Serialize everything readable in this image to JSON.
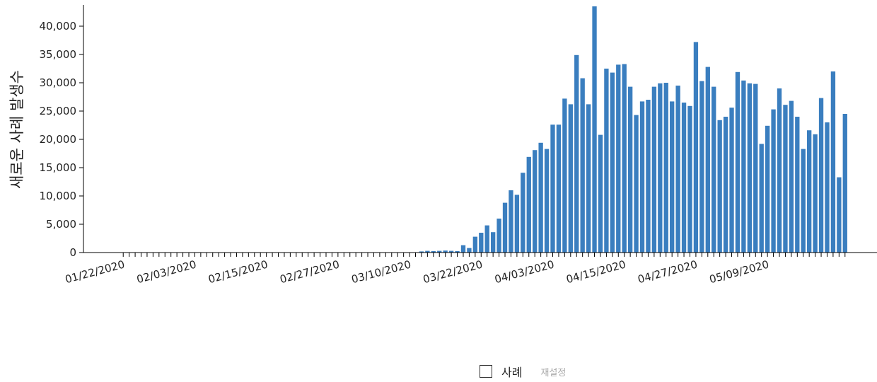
{
  "chart_data": {
    "type": "bar",
    "title": "",
    "xlabel": "",
    "ylabel": "새로운 사례 발생수",
    "ylim": [
      0,
      43500
    ],
    "yticks": [
      0,
      5000,
      10000,
      15000,
      20000,
      25000,
      30000,
      35000,
      40000
    ],
    "ytick_labels": [
      "0",
      "5,000",
      "10,000",
      "15,000",
      "20,000",
      "25,000",
      "30,000",
      "35,000",
      "40,000"
    ],
    "xtick_labels": [
      "01/22/2020",
      "02/03/2020",
      "02/15/2020",
      "02/27/2020",
      "03/10/2020",
      "03/22/2020",
      "04/03/2020",
      "04/15/2020",
      "04/27/2020",
      "05/09/2020"
    ],
    "xtick_every": 12,
    "categories_start": "01/22/2020",
    "categories_end": "05/21/2020",
    "bar_color": "#3a7ebf",
    "grid": false,
    "series": [
      {
        "name": "사례",
        "values": [
          0,
          0,
          0,
          0,
          0,
          0,
          0,
          0,
          0,
          0,
          0,
          0,
          0,
          0,
          0,
          0,
          0,
          0,
          0,
          0,
          0,
          0,
          0,
          0,
          0,
          0,
          0,
          0,
          0,
          0,
          0,
          0,
          0,
          0,
          0,
          0,
          0,
          0,
          0,
          0,
          0,
          0,
          0,
          0,
          0,
          0,
          0,
          0,
          0,
          0,
          200,
          300,
          250,
          300,
          350,
          300,
          250,
          1300,
          800,
          2800,
          3500,
          4800,
          3600,
          6000,
          8800,
          11000,
          10200,
          14100,
          16900,
          18100,
          19400,
          18300,
          22600,
          22600,
          27200,
          26200,
          34900,
          30800,
          26200,
          43500,
          20800,
          32500,
          31800,
          33200,
          33300,
          29300,
          24300,
          26700,
          27000,
          29300,
          29900,
          30000,
          26700,
          29500,
          26500,
          25900,
          37200,
          30300,
          32800,
          29300,
          23400,
          24000,
          25600,
          31900,
          30400,
          29900,
          29800,
          19200,
          22400,
          25300,
          29000,
          26100,
          26800,
          24000,
          18300,
          21600,
          20900,
          27300,
          23000,
          32000,
          13300,
          24500
        ]
      }
    ]
  },
  "legend": {
    "items": [
      {
        "label": "사례"
      }
    ],
    "reset_label": "재설정"
  }
}
